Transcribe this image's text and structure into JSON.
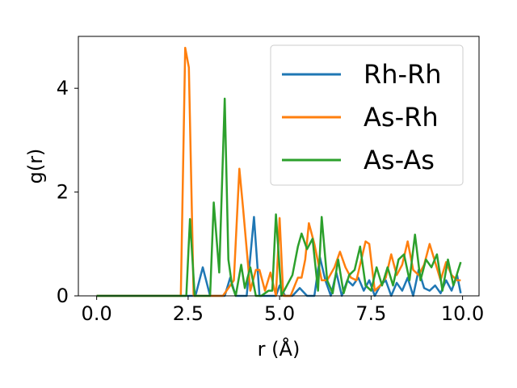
{
  "chart_data": {
    "type": "line",
    "title": "",
    "xlabel": "r (Å)",
    "ylabel": "g(r)",
    "xlim": [
      -0.5,
      10.45
    ],
    "ylim": [
      0,
      5.0
    ],
    "xticks": [
      0.0,
      2.5,
      5.0,
      7.5,
      10.0
    ],
    "xtick_labels": [
      "0.0",
      "2.5",
      "5.0",
      "7.5",
      "10.0"
    ],
    "yticks": [
      0,
      2,
      4
    ],
    "ytick_labels": [
      "0",
      "2",
      "4"
    ],
    "grid": false,
    "legend_position": "top-right",
    "series": [
      {
        "name": "Rh-Rh",
        "color": "#1f77b4",
        "x": [
          0,
          2.2,
          2.7,
          2.9,
          3.1,
          3.5,
          3.65,
          3.8,
          4.1,
          4.3,
          4.45,
          4.6,
          4.9,
          5.0,
          5.15,
          5.35,
          5.55,
          5.75,
          5.95,
          6.1,
          6.25,
          6.4,
          6.55,
          6.7,
          6.85,
          7.0,
          7.15,
          7.3,
          7.45,
          7.6,
          7.75,
          7.9,
          8.05,
          8.2,
          8.35,
          8.5,
          8.65,
          8.8,
          8.95,
          9.1,
          9.25,
          9.4,
          9.55,
          9.7,
          9.85,
          9.95
        ],
        "y": [
          0,
          0,
          0,
          0.55,
          0,
          0,
          0.35,
          0,
          0,
          1.52,
          0,
          0,
          0,
          0.2,
          0,
          0,
          0.15,
          0,
          0,
          0.75,
          0.3,
          0,
          0.45,
          0,
          0.3,
          0.2,
          0.35,
          0.1,
          0.3,
          0,
          0.2,
          0.3,
          0,
          0.25,
          0.1,
          0.35,
          0,
          0.5,
          0.15,
          0.1,
          0.2,
          0.05,
          0.3,
          0.1,
          0.4,
          0.05
        ]
      },
      {
        "name": "As-Rh",
        "color": "#ff7f0e",
        "x": [
          0,
          2.3,
          2.42,
          2.52,
          2.65,
          3.2,
          3.45,
          3.75,
          3.9,
          4.0,
          4.2,
          4.35,
          4.45,
          4.6,
          4.75,
          4.9,
          5.0,
          5.1,
          5.3,
          5.5,
          5.6,
          5.7,
          5.8,
          5.95,
          6.15,
          6.3,
          6.5,
          6.65,
          6.8,
          6.95,
          7.1,
          7.2,
          7.35,
          7.45,
          7.6,
          7.75,
          7.9,
          8.05,
          8.2,
          8.35,
          8.5,
          8.65,
          8.8,
          8.95,
          9.1,
          9.25,
          9.4,
          9.55,
          9.7,
          9.85,
          9.95
        ],
        "y": [
          0,
          0,
          4.78,
          4.4,
          0,
          0,
          0,
          0.3,
          2.45,
          1.7,
          0.1,
          0.5,
          0.5,
          0.1,
          0.45,
          0,
          1.5,
          0,
          0,
          0.35,
          0.35,
          0.7,
          1.4,
          1.0,
          0.3,
          0.3,
          0.55,
          0.85,
          0.55,
          0.35,
          0.3,
          0.6,
          1.05,
          1.0,
          0.1,
          0.2,
          0.35,
          0.8,
          0.4,
          0.6,
          1.05,
          0.5,
          0.4,
          0.6,
          1.0,
          0.65,
          0.3,
          0.65,
          0.4,
          0.3,
          0.3
        ]
      },
      {
        "name": "As-As",
        "color": "#2ca02c",
        "x": [
          0,
          2.45,
          2.55,
          2.68,
          3.1,
          3.2,
          3.35,
          3.5,
          3.6,
          3.7,
          3.8,
          3.95,
          4.05,
          4.2,
          4.35,
          4.5,
          4.7,
          4.8,
          4.9,
          5.05,
          5.2,
          5.35,
          5.5,
          5.6,
          5.75,
          5.9,
          6.05,
          6.15,
          6.3,
          6.45,
          6.6,
          6.75,
          6.9,
          7.05,
          7.2,
          7.35,
          7.5,
          7.65,
          7.8,
          7.95,
          8.1,
          8.25,
          8.4,
          8.55,
          8.7,
          8.85,
          9.0,
          9.15,
          9.3,
          9.45,
          9.6,
          9.75,
          9.95
        ],
        "y": [
          0,
          0,
          1.48,
          0,
          0,
          1.8,
          0.45,
          3.8,
          0.7,
          0.2,
          0,
          0.6,
          0.15,
          0.55,
          0,
          0,
          0.1,
          0.1,
          1.57,
          0,
          0.2,
          0.4,
          0.95,
          1.2,
          0.9,
          1.1,
          0.1,
          1.52,
          0.3,
          0.05,
          0.7,
          0.05,
          0.4,
          0.5,
          0.95,
          0.2,
          0.1,
          0.55,
          0.2,
          0.55,
          0.2,
          0.7,
          0.8,
          0.3,
          1.18,
          0.3,
          0.7,
          0.55,
          0.8,
          0.1,
          0.7,
          0.2,
          0.65
        ]
      }
    ]
  }
}
